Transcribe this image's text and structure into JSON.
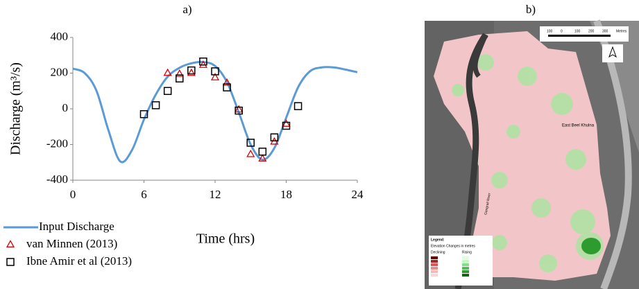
{
  "chart_data": {
    "type": "line",
    "title": "a)",
    "x_label": "Time (hrs)",
    "y_label": "Discharge (m³/s)",
    "xlim": [
      0,
      24
    ],
    "xticks": [
      0,
      6,
      12,
      18,
      24
    ],
    "ylim": [
      -400,
      400
    ],
    "yticks": [
      -400,
      -200,
      0,
      200,
      400
    ],
    "grid": false,
    "series": [
      {
        "name": "Input Discharge",
        "style": "line",
        "color": "#5b9bd5",
        "x": [
          0,
          1,
          2,
          3,
          4,
          5,
          6,
          7,
          8,
          9,
          10,
          11,
          12,
          13,
          14,
          15,
          16,
          17,
          18,
          19,
          20,
          21,
          22,
          23,
          24
        ],
        "values": [
          225,
          200,
          100,
          -120,
          -295,
          -230,
          -60,
          80,
          180,
          230,
          255,
          262,
          240,
          150,
          -20,
          -200,
          -285,
          -220,
          -50,
          120,
          210,
          232,
          232,
          220,
          205
        ]
      },
      {
        "name": "van Minnen (2013)",
        "style": "triangle",
        "color": "#e00000",
        "x": [
          8,
          9,
          10,
          11,
          12,
          13,
          14,
          15,
          16,
          17,
          18
        ],
        "values": [
          200,
          195,
          200,
          245,
          175,
          145,
          -5,
          -255,
          -280,
          -185,
          -85
        ]
      },
      {
        "name": "Ibne Amir et al (2013)",
        "style": "square",
        "color": "#000000",
        "x": [
          6,
          7,
          8,
          9,
          10,
          11,
          12,
          13,
          14,
          15,
          16,
          17,
          18,
          19
        ],
        "values": [
          -30,
          20,
          100,
          170,
          215,
          265,
          210,
          120,
          -10,
          -190,
          -240,
          -160,
          -95,
          15
        ]
      }
    ]
  },
  "map": {
    "label": "b)",
    "place": "East Beel Khulna",
    "river": "Gangrail River",
    "scale_labels": [
      "100",
      "0",
      "100",
      "200",
      "300",
      "Metres"
    ],
    "legend_title": "Legend:",
    "legend_subtitle": "Elevation Changes in metres",
    "legend_declining": "Declining",
    "legend_rising": "Rising"
  }
}
